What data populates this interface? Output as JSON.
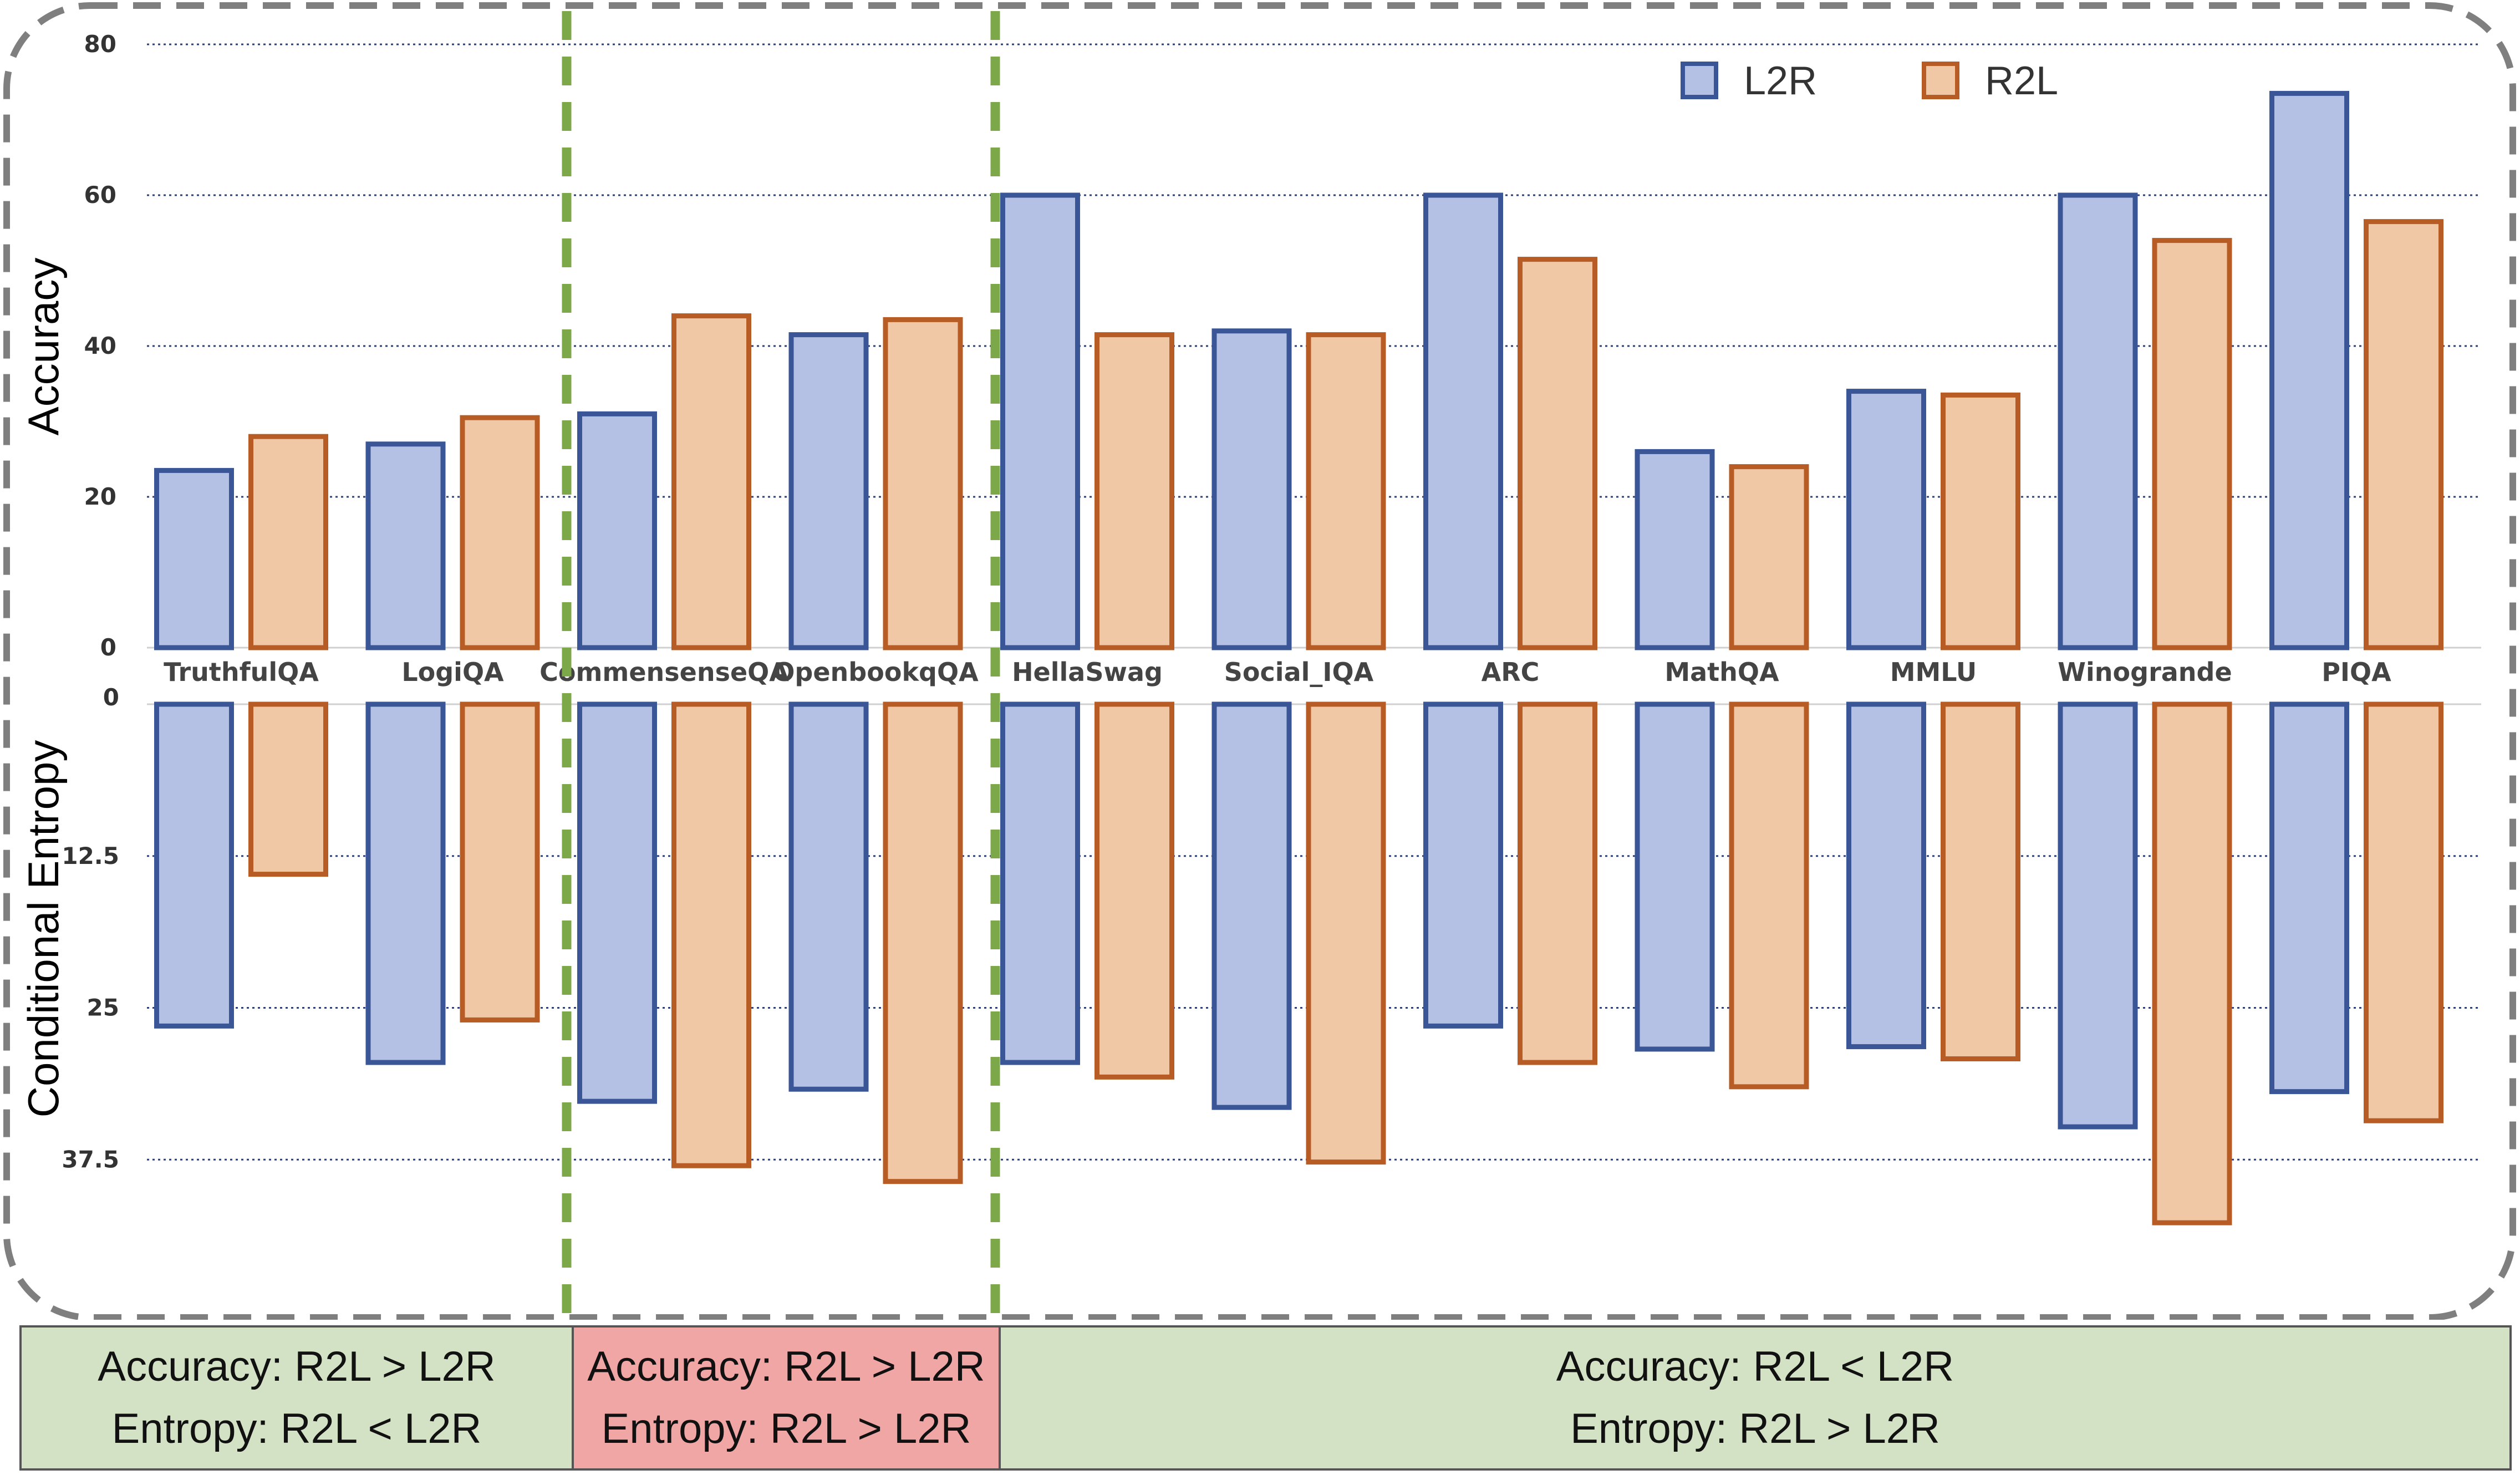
{
  "chart_data": {
    "type": "bar",
    "categories": [
      "TruthfulQA",
      "LogiQA",
      "CommensenseQA",
      "OpenbookqQA",
      "HellaSwag",
      "Social_IQA",
      "ARC",
      "MathQA",
      "MMLU",
      "Winogrande",
      "PIQA"
    ],
    "legend": {
      "placement": "top-right",
      "entries": [
        "L2R",
        "R2L"
      ]
    },
    "colors": {
      "L2R_fill": "#b4c1e4",
      "L2R_stroke": "#3a5696",
      "R2L_fill": "#f0c8a6",
      "R2L_stroke": "#b75c24",
      "separator": "#7ca84a",
      "grid": "#2b3f7a"
    },
    "accuracy": {
      "ylabel": "Accuracy",
      "ylim": [
        0,
        80
      ],
      "ticks": [
        0,
        20,
        40,
        60,
        80
      ],
      "series": [
        {
          "name": "L2R",
          "values": [
            23.5,
            27,
            31,
            41.5,
            60,
            42,
            60,
            26,
            34,
            60,
            73.5
          ]
        },
        {
          "name": "R2L",
          "values": [
            28,
            30.5,
            44,
            43.5,
            41.5,
            41.5,
            51.5,
            24,
            33.5,
            54,
            56.5
          ]
        }
      ]
    },
    "entropy": {
      "ylabel": "Conditional Entropy",
      "ylim": [
        0,
        45
      ],
      "ticks": [
        "0",
        "12.5",
        "25",
        "37.5"
      ],
      "tick_values": [
        0,
        12.5,
        25,
        37.5
      ],
      "series": [
        {
          "name": "L2R",
          "values": [
            26.5,
            29.5,
            32.7,
            31.7,
            29.5,
            33.2,
            26.5,
            28.4,
            28.2,
            34.8,
            31.9
          ]
        },
        {
          "name": "R2L",
          "values": [
            14,
            26,
            38,
            39.3,
            30.7,
            37.7,
            29.5,
            31.5,
            29.2,
            42.7,
            34.3
          ]
        }
      ]
    }
  },
  "summary": [
    {
      "line1": "Accuracy: R2L > L2R",
      "line2": "Entropy: R2L < L2R",
      "color": "#d3e2c5"
    },
    {
      "line1": "Accuracy: R2L > L2R",
      "line2": "Entropy: R2L > L2R",
      "color": "#f0a6a4"
    },
    {
      "line1": "Accuracy: R2L < L2R",
      "line2": "Entropy: R2L > L2R",
      "color": "#d3e2c5"
    }
  ]
}
